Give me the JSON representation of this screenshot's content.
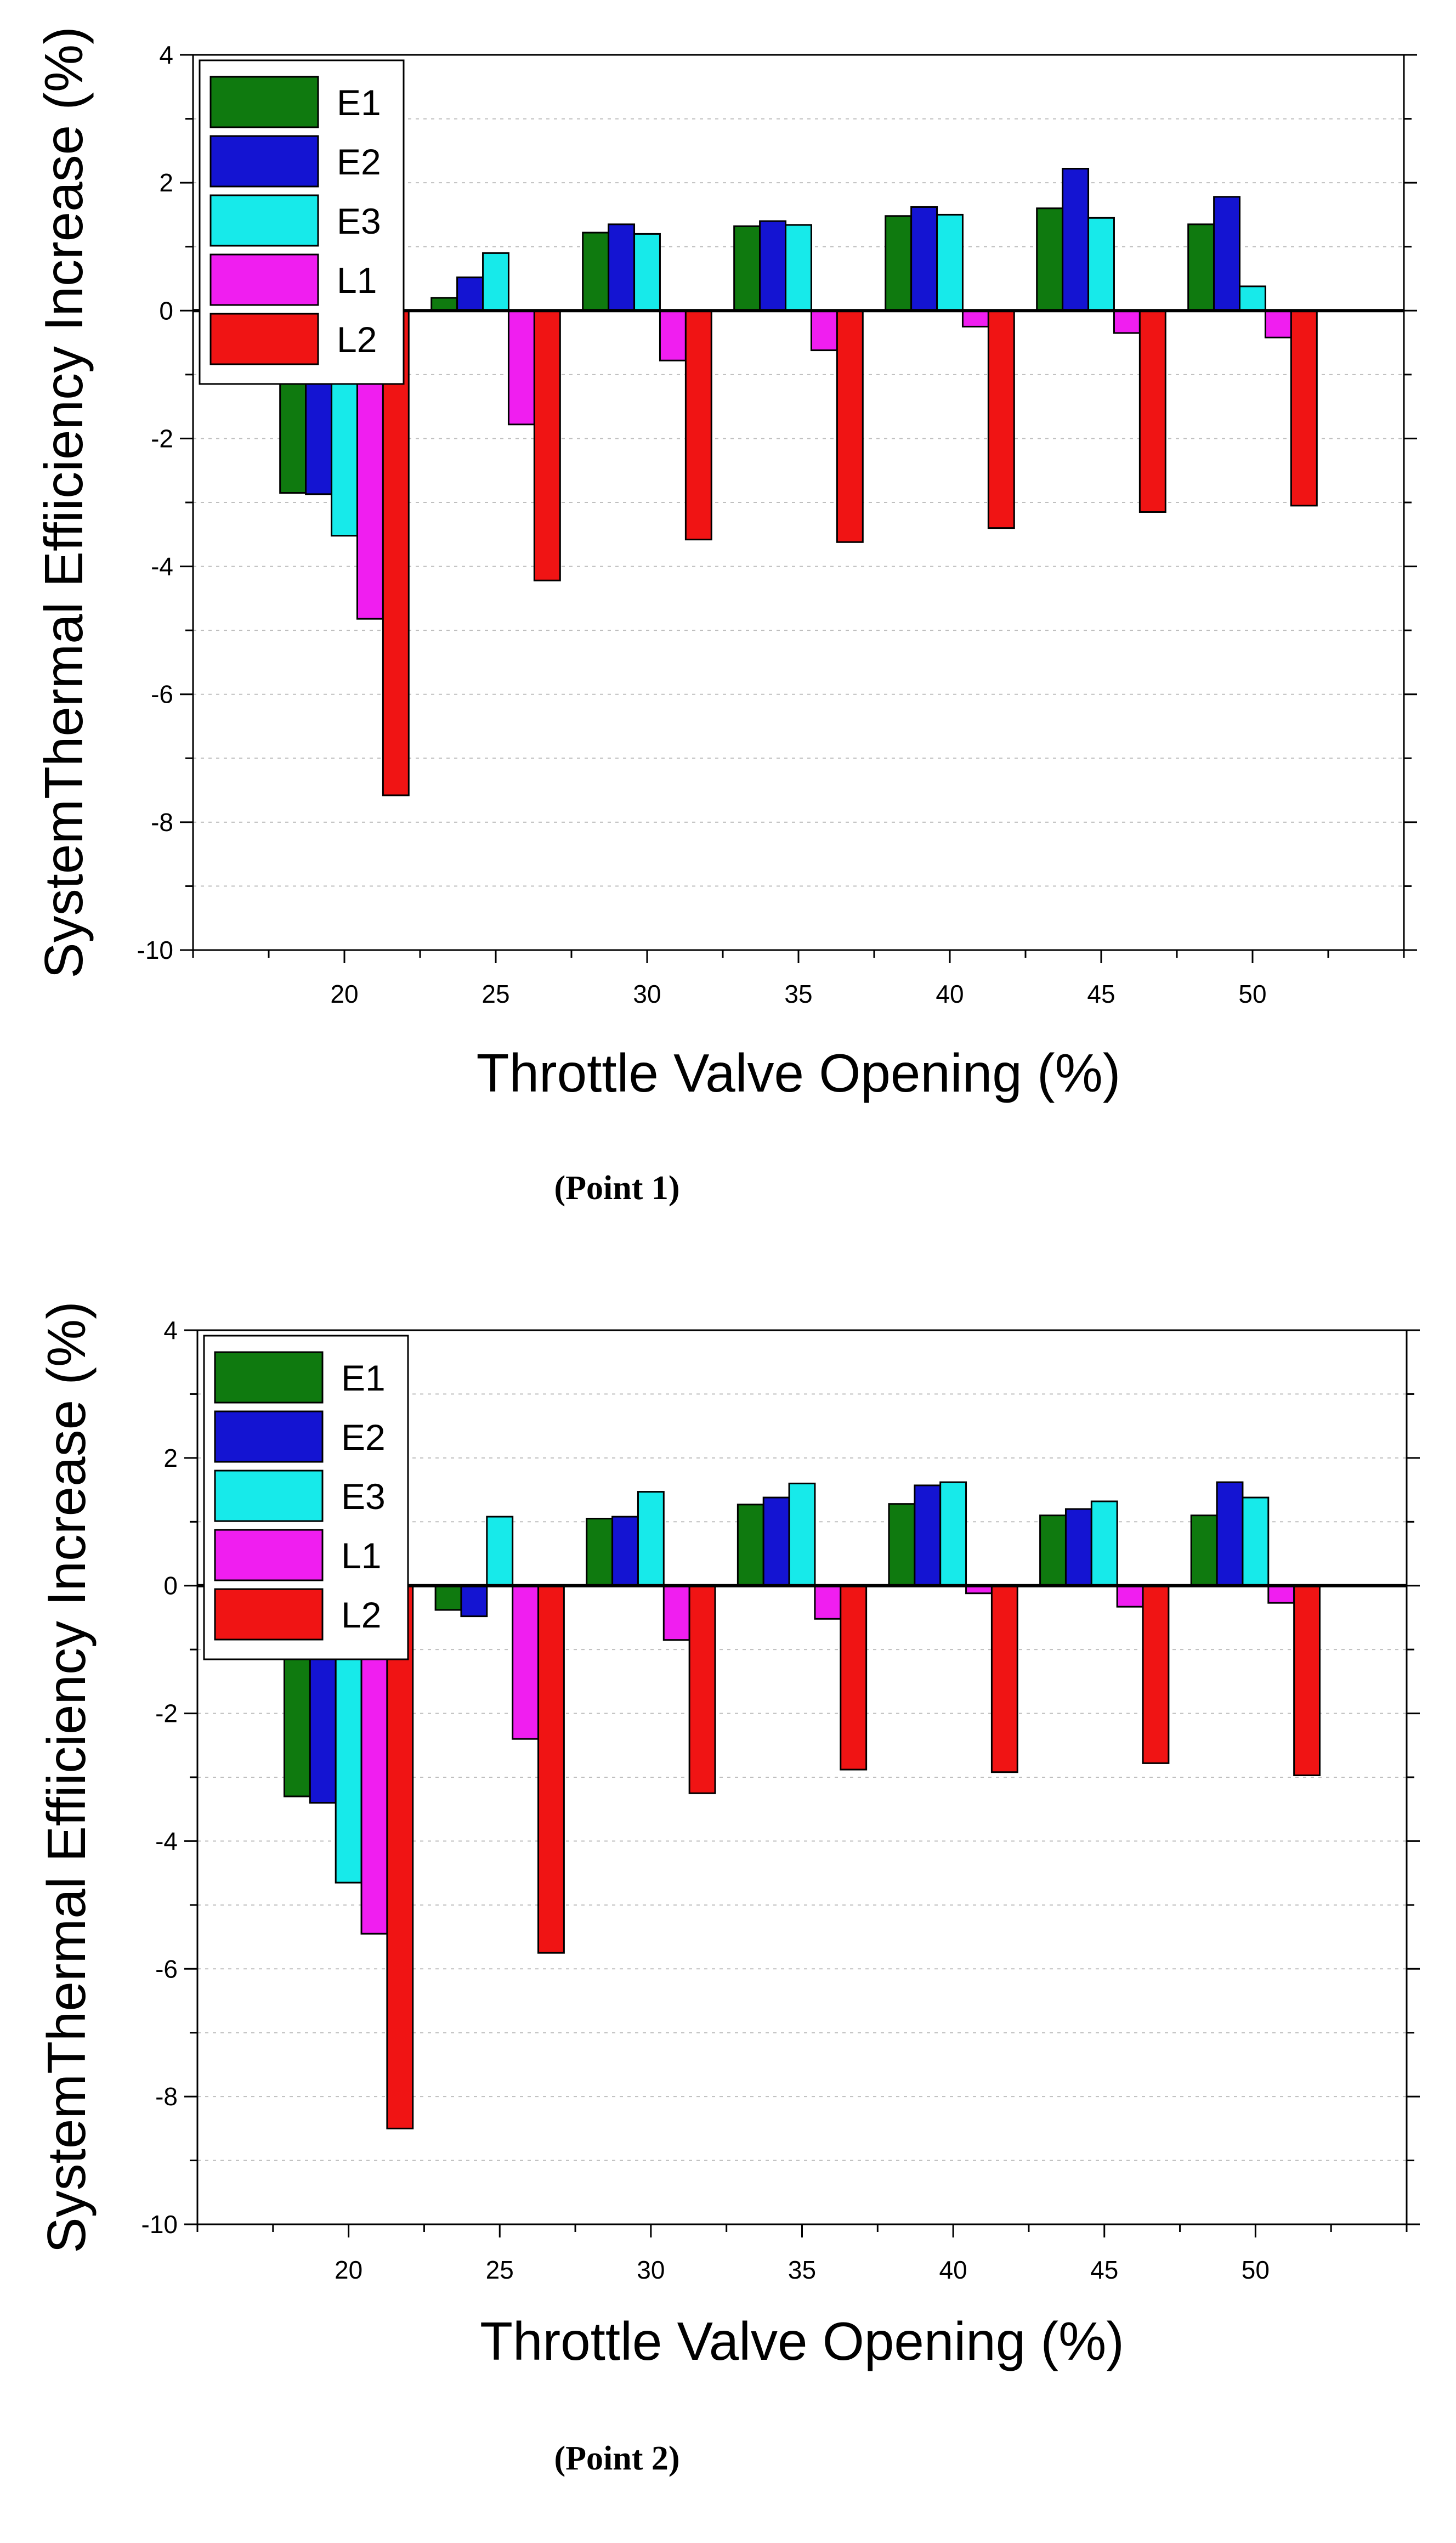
{
  "chart_data": [
    {
      "type": "bar",
      "title": "",
      "caption": "(Point 1)",
      "xlabel": "Throttle Valve Opening (%)",
      "ylabel": "SystemThermal Effiiciency Increase (%)",
      "categories": [
        "20",
        "25",
        "30",
        "35",
        "40",
        "45",
        "50"
      ],
      "ylim": [
        -10,
        4
      ],
      "yticks": [
        4,
        2,
        0,
        -2,
        -4,
        -6,
        -8,
        -10
      ],
      "grid": true,
      "legend_position": "top-left",
      "series": [
        {
          "name": "E1",
          "color": "#0f7a0f",
          "values": [
            -2.85,
            0.2,
            1.22,
            1.32,
            1.48,
            1.6,
            1.35
          ]
        },
        {
          "name": "E2",
          "color": "#1414d2",
          "values": [
            -2.87,
            0.52,
            1.35,
            1.4,
            1.62,
            2.22,
            1.78
          ]
        },
        {
          "name": "E3",
          "color": "#17eaea",
          "values": [
            -3.52,
            0.9,
            1.2,
            1.34,
            1.5,
            1.45,
            0.38
          ]
        },
        {
          "name": "L1",
          "color": "#f01ef0",
          "values": [
            -4.82,
            -1.78,
            -0.78,
            -0.62,
            -0.25,
            -0.35,
            -0.42
          ]
        },
        {
          "name": "L2",
          "color": "#f01414",
          "values": [
            -7.58,
            -4.22,
            -3.58,
            -3.62,
            -3.4,
            -3.15,
            -3.05
          ]
        }
      ]
    },
    {
      "type": "bar",
      "title": "",
      "caption": "(Point 2)",
      "xlabel": "Throttle Valve Opening (%)",
      "ylabel": "SystemThermal Effiiciency Increase (%)",
      "categories": [
        "20",
        "25",
        "30",
        "35",
        "40",
        "45",
        "50"
      ],
      "ylim": [
        -10,
        4
      ],
      "yticks": [
        4,
        2,
        0,
        -2,
        -4,
        -6,
        -8,
        -10
      ],
      "grid": true,
      "legend_position": "top-left",
      "series": [
        {
          "name": "E1",
          "color": "#0f7a0f",
          "values": [
            -3.3,
            -0.38,
            1.05,
            1.27,
            1.28,
            1.1,
            1.1
          ]
        },
        {
          "name": "E2",
          "color": "#1414d2",
          "values": [
            -3.4,
            -0.48,
            1.08,
            1.38,
            1.57,
            1.2,
            1.62
          ]
        },
        {
          "name": "E3",
          "color": "#17eaea",
          "values": [
            -4.65,
            1.08,
            1.47,
            1.6,
            1.62,
            1.32,
            1.38
          ]
        },
        {
          "name": "L1",
          "color": "#f01ef0",
          "values": [
            -5.45,
            -2.4,
            -0.85,
            -0.52,
            -0.12,
            -0.33,
            -0.27
          ]
        },
        {
          "name": "L2",
          "color": "#f01414",
          "values": [
            -8.5,
            -5.75,
            -3.25,
            -2.88,
            -2.92,
            -2.78,
            -2.97
          ]
        }
      ]
    }
  ]
}
